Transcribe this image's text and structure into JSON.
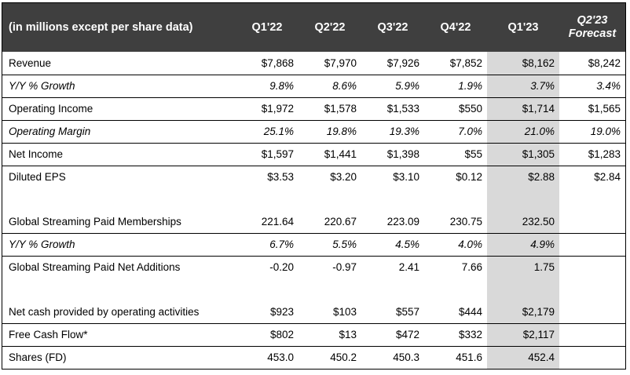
{
  "header": {
    "label": "(in millions except per share data)",
    "columns": [
      "Q1'22",
      "Q2'22",
      "Q3'22",
      "Q4'22",
      "Q1'23"
    ],
    "forecast_line1": "Q2'23",
    "forecast_line2": "Forecast"
  },
  "rows": [
    {
      "label": "Revenue",
      "values": [
        "$7,868",
        "$7,970",
        "$7,926",
        "$7,852",
        "$8,162",
        "$8,242"
      ]
    },
    {
      "label": "Y/Y % Growth",
      "values": [
        "9.8%",
        "8.6%",
        "5.9%",
        "1.9%",
        "3.7%",
        "3.4%"
      ]
    },
    {
      "label": "Operating Income",
      "values": [
        "$1,972",
        "$1,578",
        "$1,533",
        "$550",
        "$1,714",
        "$1,565"
      ]
    },
    {
      "label": "Operating Margin",
      "values": [
        "25.1%",
        "19.8%",
        "19.3%",
        "7.0%",
        "21.0%",
        "19.0%"
      ]
    },
    {
      "label": "Net Income",
      "values": [
        "$1,597",
        "$1,441",
        "$1,398",
        "$55",
        "$1,305",
        "$1,283"
      ]
    },
    {
      "label": "Diluted EPS",
      "values": [
        "$3.53",
        "$3.20",
        "$3.10",
        "$0.12",
        "$2.88",
        "$2.84"
      ]
    },
    {
      "label": "Global Streaming Paid Memberships",
      "values": [
        "221.64",
        "220.67",
        "223.09",
        "230.75",
        "232.50",
        ""
      ]
    },
    {
      "label": "Y/Y % Growth",
      "values": [
        "6.7%",
        "5.5%",
        "4.5%",
        "4.0%",
        "4.9%",
        ""
      ]
    },
    {
      "label": "Global Streaming Paid Net Additions",
      "values": [
        "-0.20",
        "-0.97",
        "2.41",
        "7.66",
        "1.75",
        ""
      ]
    },
    {
      "label": "Net cash provided by operating activities",
      "values": [
        "$923",
        "$103",
        "$557",
        "$444",
        "$2,179",
        ""
      ]
    },
    {
      "label": "Free Cash Flow*",
      "values": [
        "$802",
        "$13",
        "$472",
        "$332",
        "$2,117",
        ""
      ]
    },
    {
      "label": "Shares (FD)",
      "values": [
        "453.0",
        "450.2",
        "450.3",
        "451.6",
        "452.4",
        ""
      ]
    }
  ],
  "colors": {
    "header_bg": "#3f3f3f",
    "header_text": "#ffffff",
    "highlight_column": "#d9d9d9"
  }
}
